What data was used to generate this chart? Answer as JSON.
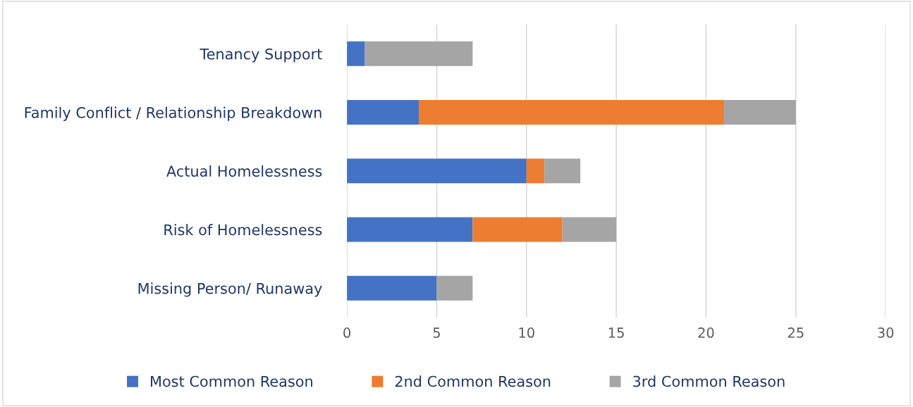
{
  "chart_data": {
    "type": "bar",
    "orientation": "horizontal",
    "stacked": true,
    "categories": [
      "Tenancy Support",
      "Family Conflict / Relationship Breakdown",
      "Actual Homelessness",
      "Risk of Homelessness",
      "Missing Person/ Runaway"
    ],
    "series": [
      {
        "name": "Most Common Reason",
        "color": "#4472c4",
        "values": [
          1,
          4,
          10,
          7,
          5
        ]
      },
      {
        "name": "2nd Common Reason",
        "color": "#ed7d31",
        "values": [
          null,
          17,
          1,
          5,
          null
        ]
      },
      {
        "name": "3rd Common Reason",
        "color": "#a5a5a5",
        "values": [
          6,
          4,
          2,
          3,
          2
        ]
      }
    ],
    "xlim": [
      0,
      30
    ],
    "xticks": [
      0,
      5,
      10,
      15,
      20,
      25,
      30
    ],
    "grid": "x",
    "legend": "bottom"
  }
}
